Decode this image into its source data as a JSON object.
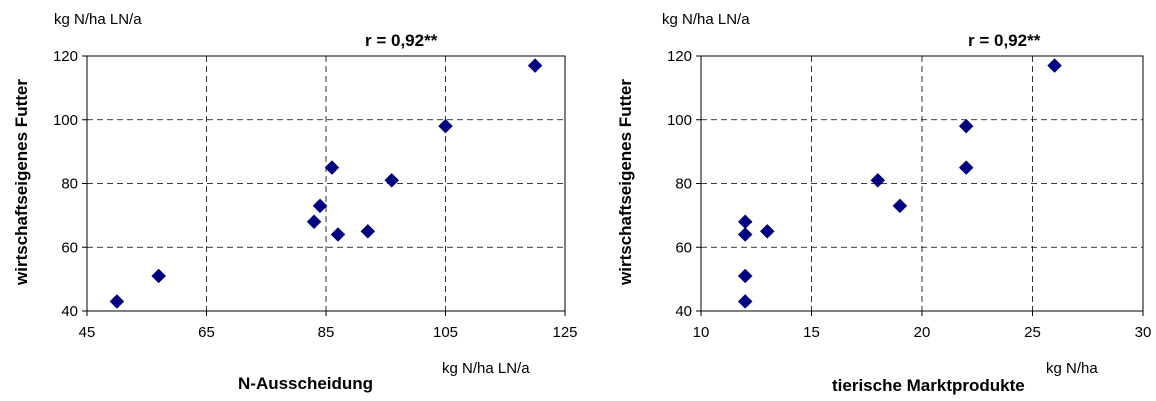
{
  "chart_data": [
    {
      "type": "scatter",
      "y_unit": "kg N/ha LN/a",
      "x_unit": "kg N/ha LN/a",
      "annotation": "r = 0,92**",
      "xlabel": "N-Ausscheidung",
      "ylabel": "wirtschaftseigenes Futter",
      "xlim": [
        45,
        125
      ],
      "ylim": [
        40,
        120
      ],
      "xticks": [
        45,
        65,
        85,
        105,
        125
      ],
      "yticks": [
        40,
        60,
        80,
        100,
        120
      ],
      "grid": true,
      "marker_color": "#00007f",
      "series": [
        {
          "points": [
            [
              50,
              43
            ],
            [
              57,
              51
            ],
            [
              83,
              68
            ],
            [
              84,
              73
            ],
            [
              86,
              85
            ],
            [
              87,
              64
            ],
            [
              92,
              65
            ],
            [
              96,
              81
            ],
            [
              105,
              98
            ],
            [
              120,
              117
            ]
          ]
        }
      ]
    },
    {
      "type": "scatter",
      "y_unit": "kg N/ha LN/a",
      "x_unit": "kg N/ha",
      "annotation": "r = 0,92**",
      "xlabel": "tierische Marktprodukte",
      "ylabel": "wirtschaftseigenes Futter",
      "xlim": [
        10,
        30
      ],
      "ylim": [
        40,
        120
      ],
      "xticks": [
        10,
        15,
        20,
        25,
        30
      ],
      "yticks": [
        40,
        60,
        80,
        100,
        120
      ],
      "grid": true,
      "marker_color": "#00007f",
      "series": [
        {
          "points": [
            [
              12,
              43
            ],
            [
              12,
              51
            ],
            [
              12,
              64
            ],
            [
              12,
              68
            ],
            [
              13,
              65
            ],
            [
              18,
              81
            ],
            [
              19,
              73
            ],
            [
              22,
              85
            ],
            [
              22,
              98
            ],
            [
              26,
              117
            ]
          ]
        }
      ]
    }
  ]
}
